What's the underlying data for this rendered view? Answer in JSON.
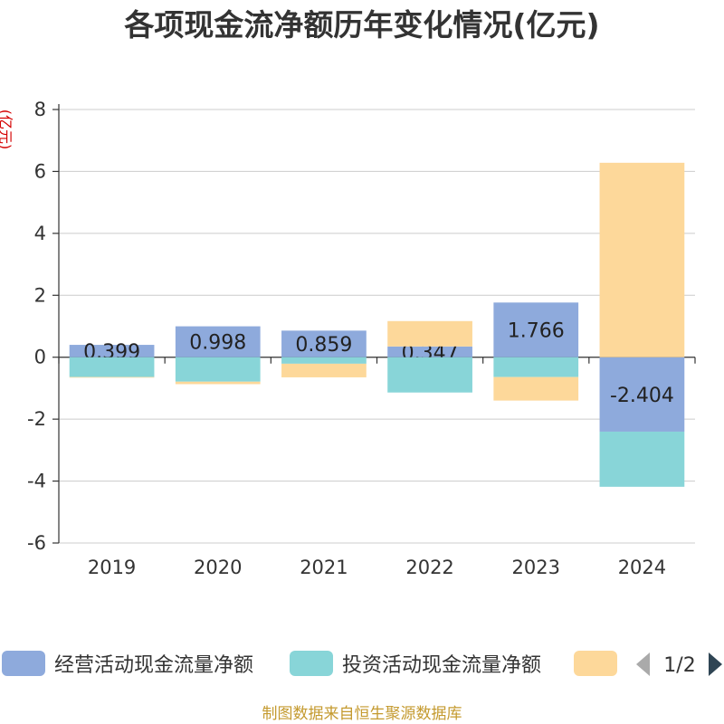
{
  "chart_data": {
    "type": "bar",
    "stacked": true,
    "title": "各项现金流净额历年变化情况(亿元)",
    "ylabel": "(亿元)",
    "xlabel": "",
    "categories": [
      "2019",
      "2020",
      "2021",
      "2022",
      "2023",
      "2024"
    ],
    "ylim": [
      -6,
      8
    ],
    "yticks": [
      -6,
      -4,
      -2,
      0,
      2,
      4,
      6,
      8
    ],
    "grid": true,
    "legend_position": "bottom",
    "series": [
      {
        "name": "经营活动现金流量净额",
        "color": "#8eaadc",
        "show_labels": true,
        "values": [
          0.399,
          0.998,
          0.859,
          0.347,
          1.766,
          -2.404
        ]
      },
      {
        "name": "投资活动现金流量净额",
        "color": "#88d5d8",
        "show_labels": false,
        "values": [
          -0.64,
          -0.79,
          -0.21,
          -1.14,
          -0.64,
          -1.78
        ]
      },
      {
        "name": "",
        "color": "#fdd89a",
        "show_labels": false,
        "values": [
          -0.02,
          -0.08,
          -0.44,
          0.82,
          -0.76,
          6.28
        ]
      }
    ]
  },
  "legend": {
    "pager": "1/2"
  },
  "footer": {
    "source": "制图数据来自恒生聚源数据库"
  }
}
